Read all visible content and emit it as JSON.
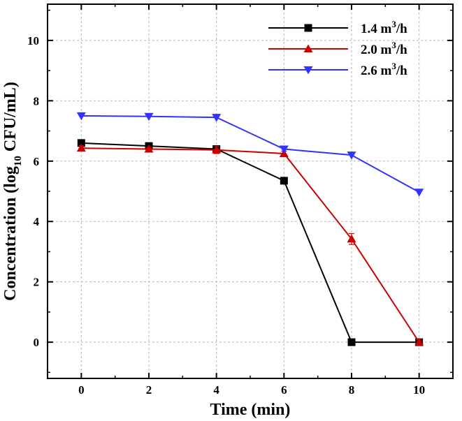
{
  "chart_data": {
    "type": "line",
    "title": "",
    "xlabel": "Time (min)",
    "ylabel_main": "Concentration (log",
    "ylabel_sub": "10",
    "ylabel_tail": " CFU/mL)",
    "xlim": [
      -1,
      11
    ],
    "ylim": [
      -1.2,
      11.2
    ],
    "xticks": [
      0,
      2,
      4,
      6,
      8,
      10
    ],
    "yticks": [
      0,
      2,
      4,
      6,
      8,
      10
    ],
    "grid": true,
    "legend_position": "top-right",
    "series": [
      {
        "name_main": "1.4 m",
        "name_sup": "3",
        "name_tail": "/h",
        "color": "#000000",
        "marker": "square",
        "x": [
          0,
          2,
          4,
          6,
          8,
          10
        ],
        "y": [
          6.6,
          6.5,
          6.4,
          5.35,
          0.0,
          0.0
        ]
      },
      {
        "name_main": "2.0 m",
        "name_sup": "3",
        "name_tail": "/h",
        "color": "#cc0000",
        "marker": "triangle-up",
        "x": [
          0,
          2,
          4,
          6,
          8,
          10
        ],
        "y": [
          6.43,
          6.4,
          6.37,
          6.25,
          3.42,
          0.0
        ],
        "error": [
          0.08,
          0.05,
          0.12,
          0.08,
          0.18,
          0.1
        ]
      },
      {
        "name_main": "2.6 m",
        "name_sup": "3",
        "name_tail": "/h",
        "color": "#3333ff",
        "marker": "triangle-down",
        "x": [
          0,
          2,
          4,
          6,
          8,
          10
        ],
        "y": [
          7.5,
          7.48,
          7.45,
          6.4,
          6.2,
          4.97
        ]
      }
    ]
  }
}
